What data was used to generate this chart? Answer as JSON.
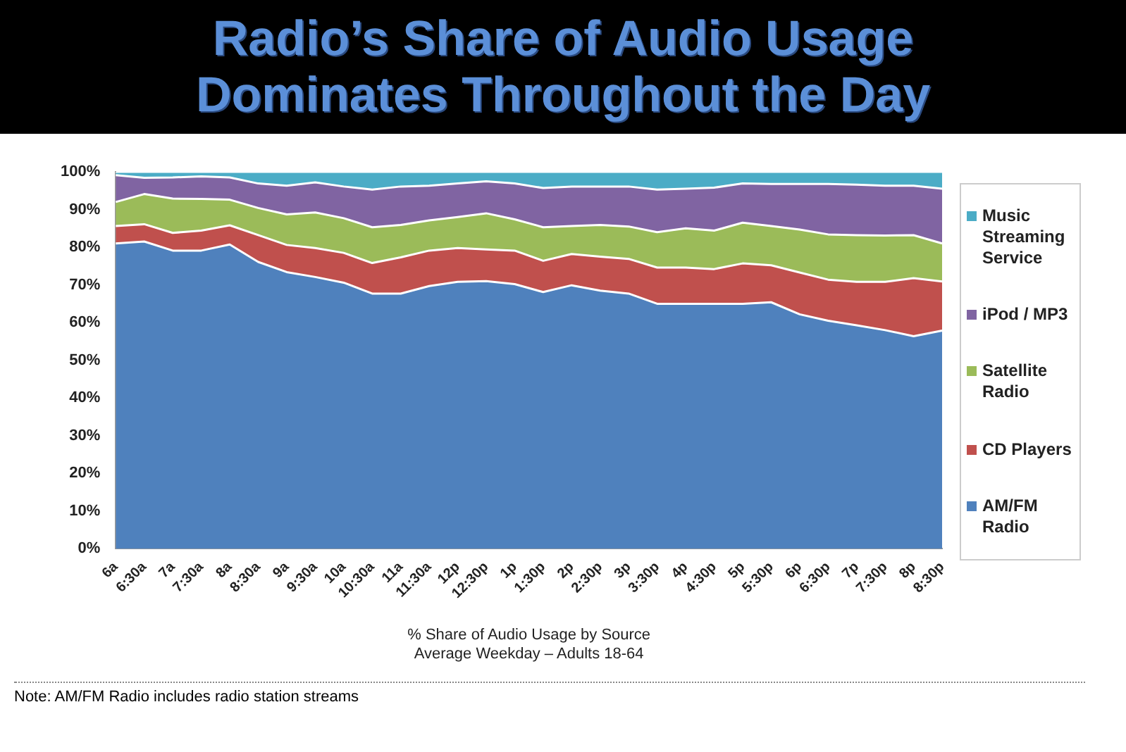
{
  "chart_data": {
    "type": "area",
    "title": "Radio’s Share of Audio Usage Dominates Throughout the Day",
    "xlabel": "% Share of Audio Usage by Source\nAverage Weekday – Adults 18-64",
    "annotations": [
      "Note: AM/FM Radio includes radio station streams"
    ],
    "categories": [
      "6a",
      "6:30a",
      "7a",
      "7:30a",
      "8a",
      "8:30a",
      "9a",
      "9:30a",
      "10a",
      "10:30a",
      "11a",
      "11:30a",
      "12p",
      "12:30p",
      "1p",
      "1:30p",
      "2p",
      "2:30p",
      "3p",
      "3:30p",
      "4p",
      "4:30p",
      "5p",
      "5:30p",
      "6p",
      "6:30p",
      "7p",
      "7:30p",
      "8p",
      "8:30p"
    ],
    "stacked": true,
    "grid": false,
    "legend": "right",
    "marker": "none",
    "ylim": [
      0,
      100
    ],
    "yticks": [
      {
        "value": 0,
        "label": "0%"
      },
      {
        "value": 10,
        "label": "10%"
      },
      {
        "value": 20,
        "label": "20%"
      },
      {
        "value": 30,
        "label": "30%"
      },
      {
        "value": 40,
        "label": "40%"
      },
      {
        "value": 50,
        "label": "50%"
      },
      {
        "value": 60,
        "label": "60%"
      },
      {
        "value": 70,
        "label": "70%"
      },
      {
        "value": 80,
        "label": "80%"
      },
      {
        "value": 90,
        "label": "90%"
      },
      {
        "value": 100,
        "label": "100%"
      }
    ],
    "series": [
      {
        "name": "AM/FM Radio",
        "color": "#4f81bd",
        "values": [
          81.0,
          81.5,
          79.1,
          79.1,
          80.7,
          76.1,
          73.4,
          72.1,
          70.6,
          67.7,
          67.7,
          69.7,
          70.8,
          71.0,
          70.2,
          68.1,
          69.9,
          68.5,
          67.7,
          65.0,
          65.0,
          65.0,
          65.0,
          65.4,
          62.2,
          60.5,
          59.3,
          58.0,
          56.4,
          57.9
        ]
      },
      {
        "name": "CD Players",
        "color": "#c0504d",
        "values": [
          4.6,
          4.6,
          4.7,
          5.3,
          5.1,
          7.1,
          7.2,
          7.7,
          7.9,
          8.1,
          9.6,
          9.4,
          9.0,
          8.4,
          8.9,
          8.3,
          8.3,
          9.0,
          9.2,
          9.6,
          9.6,
          9.2,
          10.7,
          9.8,
          11.1,
          10.9,
          11.5,
          12.8,
          15.4,
          13.0
        ]
      },
      {
        "name": "Satellite Radio",
        "color": "#9bbb59",
        "values": [
          6.4,
          8.0,
          9.1,
          8.4,
          6.8,
          7.2,
          8.1,
          9.4,
          9.2,
          9.5,
          8.6,
          8.0,
          8.2,
          9.6,
          8.3,
          8.9,
          7.4,
          8.4,
          8.6,
          9.4,
          10.4,
          10.2,
          10.8,
          10.4,
          11.4,
          12.0,
          12.4,
          12.3,
          11.4,
          10.1
        ]
      },
      {
        "name": "iPod / MP3",
        "color": "#8064a2",
        "values": [
          7.1,
          4.3,
          5.6,
          6.0,
          5.9,
          6.5,
          7.6,
          8.0,
          8.4,
          10.0,
          10.2,
          9.2,
          8.9,
          8.5,
          9.5,
          10.4,
          10.5,
          10.2,
          10.6,
          11.3,
          10.5,
          11.4,
          10.4,
          11.2,
          12.1,
          13.4,
          13.4,
          13.2,
          13.1,
          14.5
        ]
      },
      {
        "name": "Music Streaming Service",
        "color": "#4bacc6",
        "values": [
          0.9,
          1.6,
          1.5,
          1.2,
          1.5,
          3.1,
          3.7,
          2.8,
          3.9,
          4.7,
          3.9,
          3.7,
          3.1,
          2.5,
          3.1,
          4.3,
          3.9,
          3.9,
          3.9,
          4.7,
          4.5,
          4.2,
          3.1,
          3.2,
          3.2,
          3.2,
          3.4,
          3.7,
          3.7,
          4.5
        ]
      }
    ]
  }
}
